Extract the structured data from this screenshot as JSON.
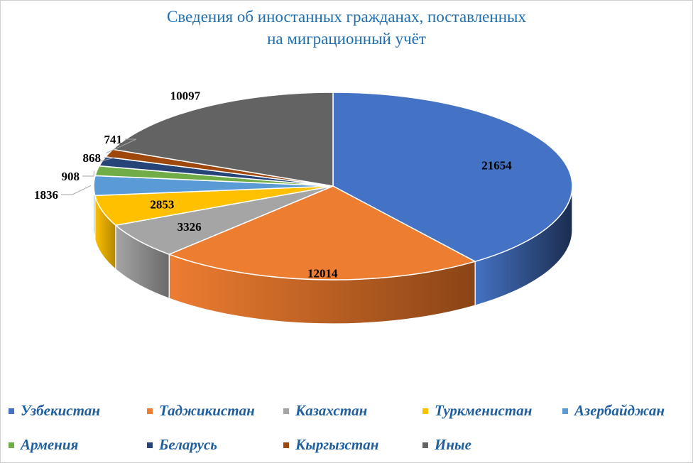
{
  "chart_data": {
    "type": "pie",
    "title_lines": [
      "Сведения об иностанных гражданах, поставленных",
      "на миграционный учёт"
    ],
    "slices": [
      {
        "label": "Узбекистан",
        "value": 21654,
        "color": "#4472c4",
        "side": "#1b2d4f"
      },
      {
        "label": "Таджикистан",
        "value": 12014,
        "color": "#ed7d31",
        "side": "#8a4416"
      },
      {
        "label": "Казахстан",
        "value": 3326,
        "color": "#a5a5a5",
        "side": "#6a6a6a"
      },
      {
        "label": "Туркменистан",
        "value": 2853,
        "color": "#ffc000",
        "side": "#b38700"
      },
      {
        "label": "Азербайджан",
        "value": 1836,
        "color": "#5b9bd5",
        "side": "#355f87"
      },
      {
        "label": "Армения",
        "value": 908,
        "color": "#70ad47",
        "side": "#44702a"
      },
      {
        "label": "Беларусь",
        "value": 868,
        "color": "#264478",
        "side": "#152745"
      },
      {
        "label": "Кыргызстан",
        "value": 741,
        "color": "#9e480e",
        "side": "#5c2a08"
      },
      {
        "label": "Иные",
        "value": 10097,
        "color": "#636363",
        "side": "#3c3c3c"
      }
    ],
    "legend_position": "bottom"
  }
}
